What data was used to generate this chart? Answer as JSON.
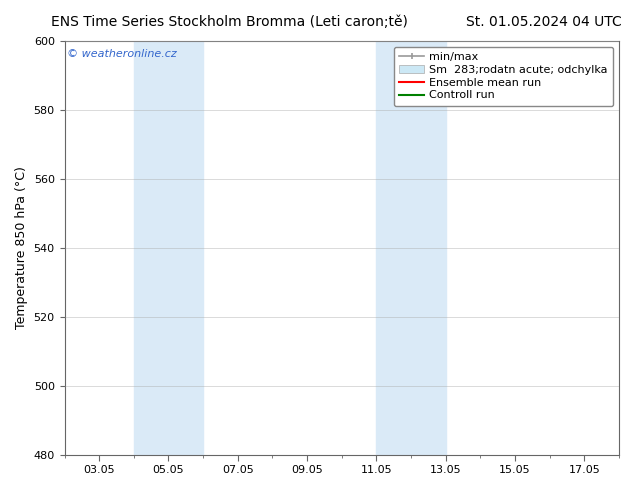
{
  "title_left": "ENS Time Series Stockholm Bromma (Leti caron;tě)",
  "title_right": "St. 01.05.2024 04 UTC",
  "ylabel": "Temperature 850 hPa (°C)",
  "ylim": [
    480,
    600
  ],
  "yticks": [
    480,
    500,
    520,
    540,
    560,
    580,
    600
  ],
  "xlabel_ticks": [
    "03.05",
    "05.05",
    "07.05",
    "09.05",
    "11.05",
    "13.05",
    "15.05",
    "17.05"
  ],
  "xtick_positions": [
    3,
    5,
    7,
    9,
    11,
    13,
    15,
    17
  ],
  "watermark": "© weatheronline.cz",
  "watermark_color": "#3366cc",
  "legend_label_minmax": "min/max",
  "legend_label_sm": "Sm  283;rodatn acute; odchylka",
  "legend_label_ens": "Ensemble mean run",
  "legend_label_ctrl": "Controll run",
  "legend_color_minmax": "#999999",
  "legend_color_sm": "#cce8f5",
  "legend_color_ens": "#ff0000",
  "legend_color_ctrl": "#008000",
  "shaded_regions": [
    {
      "xstart": 4.0,
      "xend": 6.0,
      "color": "#daeaf7"
    },
    {
      "xstart": 11.0,
      "xend": 13.0,
      "color": "#daeaf7"
    }
  ],
  "bg_color": "#ffffff",
  "plot_bg_color": "#ffffff",
  "grid_color": "#aaaaaa",
  "title_fontsize": 10,
  "tick_fontsize": 8,
  "legend_fontsize": 8,
  "ylabel_fontsize": 9,
  "x_min": 2.0,
  "x_max": 18.0
}
